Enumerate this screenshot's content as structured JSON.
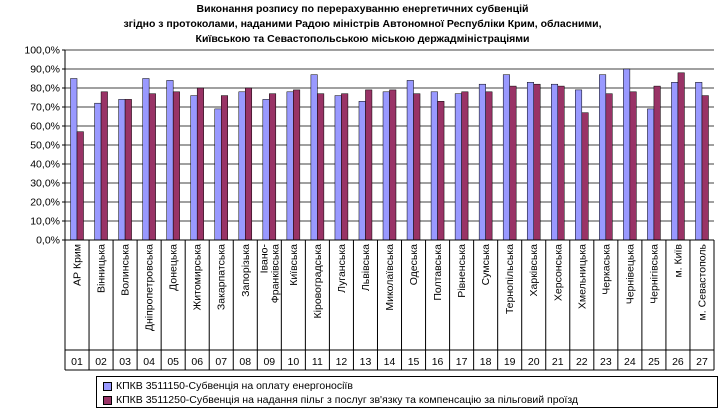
{
  "chart_data": {
    "type": "bar",
    "title": [
      "Виконання розпису по перерахуванню енергетичних субвенцій",
      "згідно з протоколами, наданими Радою міністрів Автономної Республіки Крим, обласними,",
      "Київською та Севастопольською міською держадміністраціями"
    ],
    "ylim": [
      0,
      100
    ],
    "yticks": [
      "0,0%",
      "10,0%",
      "20,0%",
      "30,0%",
      "40,0%",
      "50,0%",
      "60,0%",
      "70,0%",
      "80,0%",
      "90,0%",
      "100,0%"
    ],
    "categories": [
      "АР Крим",
      "Вінницька",
      "Волинська",
      "Дніпропетровська",
      "Донецька",
      "Житомирська",
      "Закарпатська",
      "Запорізька",
      "Івано-Франківська",
      "Київська",
      "Кіровоградська",
      "Луганська",
      "Львівська",
      "Миколаївська",
      "Одеська",
      "Полтавська",
      "Рівненська",
      "Сумська",
      "Тернопільська",
      "Харківська",
      "Херсонська",
      "Хмельницька",
      "Черкаська",
      "Чернівецька",
      "Чернігівська",
      "м. Київ",
      "м. Севастополь"
    ],
    "codes": [
      "01",
      "02",
      "03",
      "04",
      "05",
      "06",
      "07",
      "08",
      "09",
      "10",
      "11",
      "12",
      "13",
      "14",
      "15",
      "16",
      "17",
      "18",
      "19",
      "20",
      "21",
      "22",
      "23",
      "24",
      "25",
      "26",
      "27"
    ],
    "series": [
      {
        "name": "КПКВ 3511150-Субвенція на оплату енергоносіїв",
        "color": "#9999ff",
        "values": [
          85,
          72,
          74,
          85,
          84,
          76,
          69,
          78,
          74,
          78,
          87,
          76,
          73,
          78,
          84,
          78,
          77,
          82,
          87,
          83,
          82,
          79,
          87,
          90,
          69,
          83,
          83
        ]
      },
      {
        "name": "КПКВ 3511250-Субвенція на надання пільг з послуг зв'язку та компенсацію за пільговий проїзд",
        "color": "#993366",
        "values": [
          57,
          78,
          74,
          77,
          78,
          80,
          76,
          80,
          77,
          79,
          77,
          77,
          79,
          79,
          77,
          73,
          78,
          78,
          81,
          82,
          81,
          67,
          77,
          78,
          81,
          88,
          76
        ]
      }
    ],
    "grid": true,
    "legend": "bottom"
  }
}
